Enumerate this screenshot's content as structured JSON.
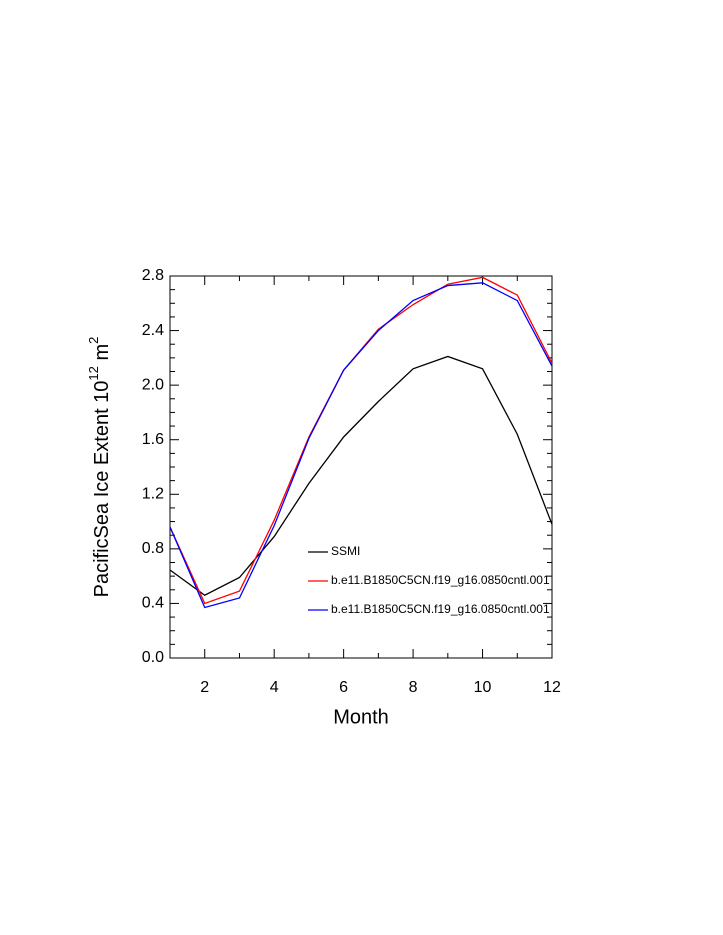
{
  "chart_data": {
    "type": "line",
    "x_label": "Month",
    "y_label": [
      "PacificSea Ice Extent 10",
      "12",
      " m",
      "2"
    ],
    "x": [
      1,
      2,
      3,
      4,
      5,
      6,
      7,
      8,
      9,
      10,
      11,
      12
    ],
    "series": [
      {
        "name": "SSMI",
        "color": "#000000",
        "values": [
          0.645,
          0.46,
          0.59,
          0.89,
          1.28,
          1.62,
          1.88,
          2.12,
          2.21,
          2.12,
          1.64,
          0.98
        ]
      },
      {
        "name": "b.e11.B1850C5CN.f19_g16.0850cntl.001",
        "color": "#ff0000",
        "values": [
          0.96,
          0.4,
          0.49,
          1.01,
          1.62,
          2.11,
          2.41,
          2.59,
          2.74,
          2.79,
          2.66,
          2.16
        ]
      },
      {
        "name": "b.e11.B1850C5CN.f19_g16.0850cntl.001",
        "color": "#0000ff",
        "values": [
          0.96,
          0.37,
          0.44,
          0.97,
          1.61,
          2.11,
          2.4,
          2.62,
          2.73,
          2.75,
          2.62,
          2.14
        ]
      }
    ],
    "xlim": [
      1,
      12
    ],
    "ylim": [
      0,
      2.8
    ],
    "xticks": [
      2,
      4,
      6,
      8,
      10,
      12
    ],
    "yticks": [
      {
        "value": 0,
        "label": "0.0"
      },
      0.4,
      0.8,
      1.2,
      1.6,
      {
        "value": 2,
        "label": "2.0"
      },
      2.4,
      2.8
    ],
    "xminorticks": [
      1,
      3,
      5,
      7,
      9,
      11
    ],
    "yminorticks": [
      0.1,
      0.2,
      0.3,
      0.5,
      0.6,
      0.7,
      0.9,
      1.0,
      1.1,
      1.3,
      1.4,
      1.5,
      1.7,
      1.8,
      1.9,
      2.1,
      2.2,
      2.3,
      2.5,
      2.6,
      2.7
    ],
    "grid": false
  }
}
